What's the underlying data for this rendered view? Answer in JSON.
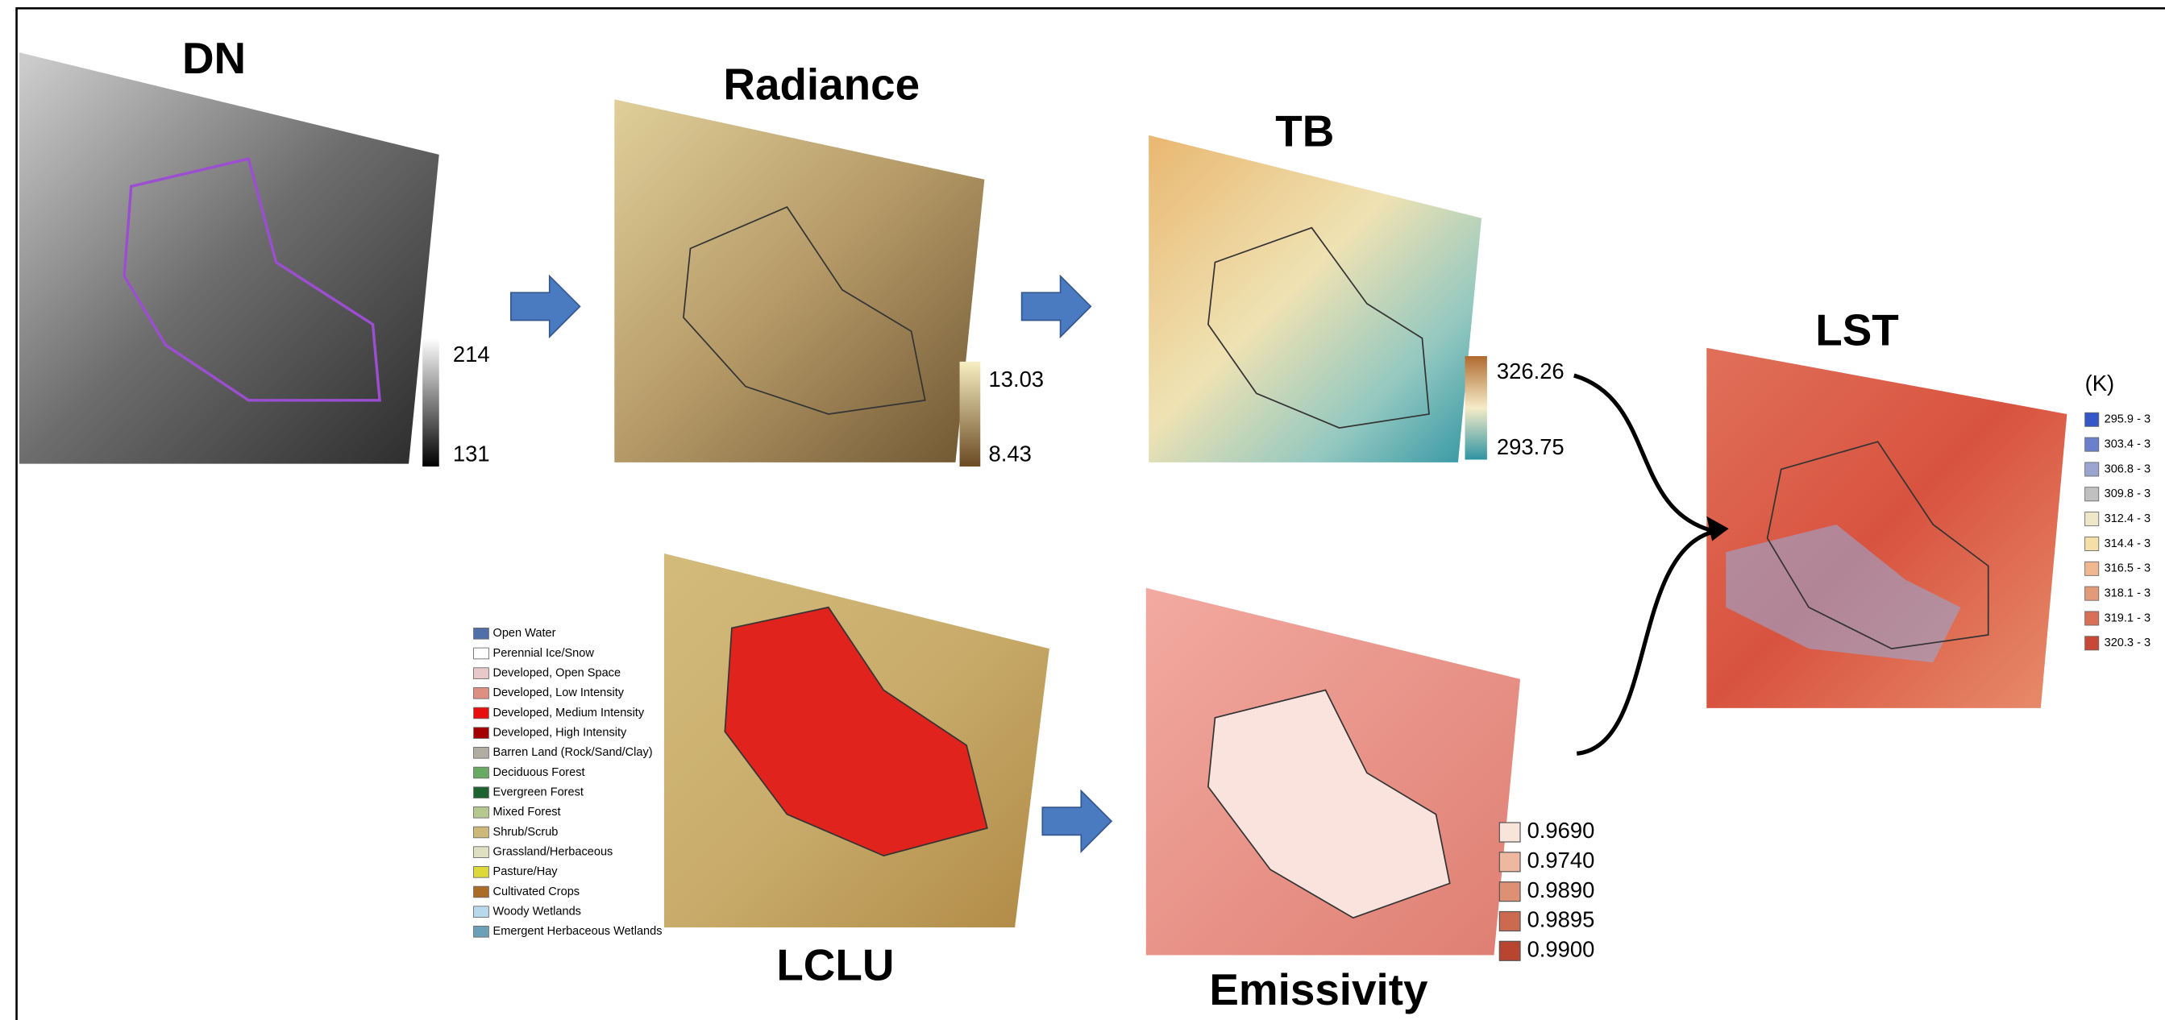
{
  "panels": {
    "dn": {
      "title": "DN",
      "legend": [
        "214",
        "131"
      ]
    },
    "radiance": {
      "title": "Radiance",
      "legend": [
        "13.03",
        "8.43"
      ]
    },
    "tb": {
      "title": "TB",
      "legend": [
        "326.26",
        "293.75"
      ]
    },
    "lclu": {
      "title": "LCLU",
      "legend": [
        "Open Water",
        "Perennial Ice/Snow",
        "Developed, Open Space",
        "Developed, Low Intensity",
        "Developed, Medium Intensity",
        "Developed, High Intensity",
        "Barren Land (Rock/Sand/Clay)",
        "Deciduous Forest",
        "Evergreen Forest",
        "Mixed Forest",
        "Shrub/Scrub",
        "Grassland/Herbaceous",
        "Pasture/Hay",
        "Cultivated Crops",
        "Woody Wetlands",
        "Emergent Herbaceous Wetlands"
      ]
    },
    "emissivity": {
      "title": "Emissivity",
      "legend": [
        "0.9690",
        "0.9740",
        "0.9890",
        "0.9895",
        "0.9900"
      ]
    },
    "lst": {
      "title": "LST",
      "unit": "(K)",
      "legend": [
        "295.9 - 3",
        "303.4 - 3",
        "306.8 - 3",
        "309.8 - 3",
        "312.4 - 3",
        "314.4 - 3",
        "316.5 - 3",
        "318.1 - 3",
        "319.1 - 3",
        "320.3 - 3"
      ]
    }
  }
}
